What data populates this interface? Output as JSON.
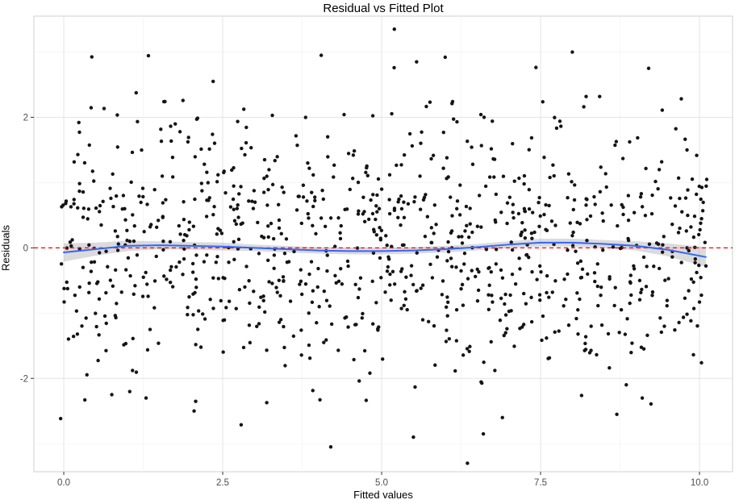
{
  "title": "Residual vs Fitted Plot",
  "axes": {
    "xlabel": "Fitted values",
    "ylabel": "Residuals",
    "x_tick_labels": [
      "0.0",
      "2.5",
      "5.0",
      "7.5",
      "10.0"
    ],
    "x_tick_values": [
      0,
      2.5,
      5,
      7.5,
      10
    ],
    "y_tick_labels": [
      "-2",
      "0",
      "2"
    ],
    "y_tick_values": [
      -2,
      0,
      2
    ]
  },
  "chart_data": {
    "type": "scatter",
    "title": "Residual vs Fitted Plot",
    "xlabel": "Fitted values",
    "ylabel": "Residuals",
    "xlim": [
      -0.47,
      10.52
    ],
    "ylim": [
      -3.43,
      3.55
    ],
    "x_major_gridlines": [
      0,
      2.5,
      5,
      7.5,
      10
    ],
    "x_minor_gridlines": [
      1.25,
      3.75,
      6.25,
      8.75
    ],
    "y_major_gridlines": [
      -2,
      0,
      2
    ],
    "y_minor_gridlines": [
      -3,
      -1,
      1,
      3
    ],
    "grid": true,
    "legend": false,
    "points": {
      "description": "Random residuals scattered uniformly in x from 0 to 10.1, approximately normal in y with mean 0 and sd about 1, range roughly -3.3 to 3.35",
      "n": 980,
      "seed": 42,
      "x_distribution": {
        "type": "uniform",
        "min": -0.05,
        "max": 10.15
      },
      "y_distribution": {
        "type": "normal",
        "mean": 0,
        "sd": 1.02,
        "clip": 3.2
      },
      "color": "#141414",
      "radius": 2.2
    },
    "extra_points": [
      [
        5.2,
        3.35
      ],
      [
        4.05,
        2.95
      ],
      [
        6.0,
        2.92
      ],
      [
        8.0,
        3.0
      ],
      [
        9.2,
        2.75
      ],
      [
        5.55,
        2.85
      ],
      [
        2.35,
        2.55
      ],
      [
        6.35,
        -3.3
      ],
      [
        4.2,
        -3.05
      ],
      [
        5.5,
        -2.9
      ],
      [
        6.6,
        -2.85
      ],
      [
        2.05,
        -2.5
      ],
      [
        8.7,
        -2.55
      ],
      [
        9.1,
        -2.3
      ],
      [
        6.9,
        -2.6
      ]
    ],
    "reference_line": {
      "y": 0,
      "color": "#ff0000",
      "style": "dashed"
    },
    "smooth_line": {
      "color": "#3366ff",
      "width": 2,
      "x": [
        0,
        0.5,
        1,
        1.5,
        2,
        2.5,
        3,
        3.5,
        4,
        4.5,
        5,
        5.5,
        6,
        6.5,
        7,
        7.5,
        8,
        8.5,
        9,
        9.5,
        10.1
      ],
      "y": [
        -0.07,
        -0.02,
        0.03,
        0.04,
        0.03,
        0.02,
        0.0,
        -0.02,
        -0.04,
        -0.05,
        -0.05,
        -0.04,
        -0.02,
        0.01,
        0.05,
        0.08,
        0.08,
        0.06,
        0.03,
        -0.03,
        -0.14
      ],
      "band_halfwidth": [
        0.14,
        0.1,
        0.08,
        0.06,
        0.06,
        0.06,
        0.05,
        0.05,
        0.05,
        0.05,
        0.05,
        0.05,
        0.05,
        0.05,
        0.05,
        0.06,
        0.06,
        0.06,
        0.07,
        0.1,
        0.15
      ],
      "band_color": "#999999",
      "band_opacity": 0.35
    },
    "style": {
      "panel_background": "#ffffff",
      "panel_border": "#cfcfcf",
      "major_grid_color": "#e4e4e4",
      "minor_grid_color": "#f2f2f2",
      "tick_color": "#333333",
      "tick_label_color": "#4d4d4d"
    }
  }
}
